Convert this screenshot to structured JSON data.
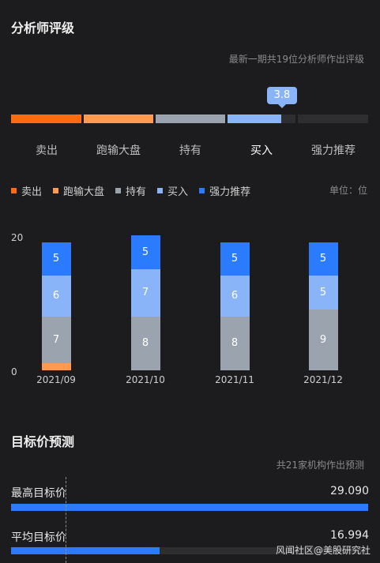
{
  "analyst": {
    "title": "分析师评级",
    "subtitle": "最新一期共19位分析师作出评级",
    "current_score": "3.8",
    "ratings": [
      "卖出",
      "跑输大盘",
      "持有",
      "买入",
      "强力推荐"
    ],
    "unit": "单位：位"
  },
  "colors": {
    "sell": "#ff6a13",
    "underperform": "#ff9a52",
    "hold": "#9aa3ae",
    "buy": "#8ab4f8",
    "strong_buy": "#2b7bff"
  },
  "chart_data": {
    "type": "bar",
    "stacked": true,
    "categories": [
      "2021/09",
      "2021/10",
      "2021/11",
      "2021/12"
    ],
    "ylim": [
      0,
      20
    ],
    "yticks": [
      "0",
      "20"
    ],
    "series": [
      {
        "name": "卖出",
        "values": [
          0,
          0,
          0,
          0
        ]
      },
      {
        "name": "跑输大盘",
        "values": [
          1,
          0,
          0,
          0
        ]
      },
      {
        "name": "持有",
        "values": [
          7,
          8,
          8,
          9
        ]
      },
      {
        "name": "买入",
        "values": [
          6,
          7,
          6,
          5
        ]
      },
      {
        "name": "强力推荐",
        "values": [
          5,
          5,
          5,
          5
        ]
      }
    ],
    "legend_position": "top-left"
  },
  "target_price": {
    "title": "目标价预测",
    "subtitle": "共21家机构作出预测",
    "rows": [
      {
        "label": "最高目标价",
        "value": "29.090",
        "fill": 1.0
      },
      {
        "label": "平均目标价",
        "value": "16.994",
        "fill": 0.415
      }
    ]
  },
  "watermark": "风闻社区@美股研究社"
}
